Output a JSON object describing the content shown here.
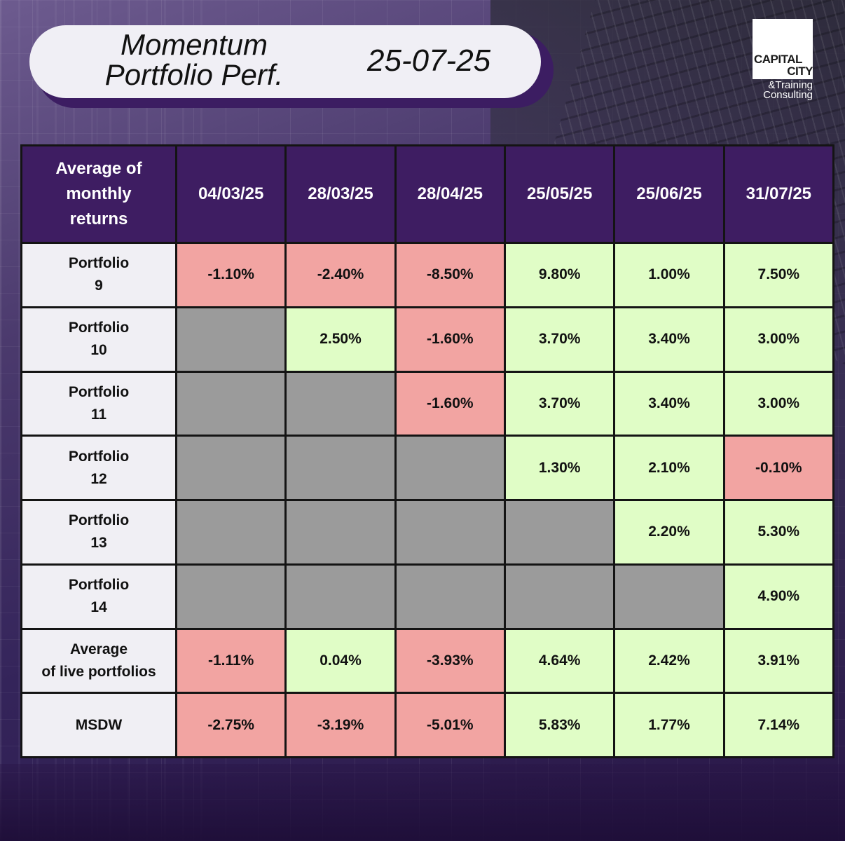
{
  "header": {
    "title_line1": "Momentum",
    "title_line2": "Portfolio Perf.",
    "date": "25-07-25"
  },
  "logo": {
    "line1": "CAPITAL",
    "line2": "CITY",
    "line3": "&Training",
    "line4": "Consulting"
  },
  "chart_data": {
    "type": "table",
    "corner_header": [
      "Average of",
      "monthly",
      "returns"
    ],
    "columns": [
      "04/03/25",
      "28/03/25",
      "28/04/25",
      "25/05/25",
      "25/06/25",
      "31/07/25"
    ],
    "rows": [
      {
        "label": [
          "Portfolio",
          "9"
        ],
        "cells": [
          "-1.10%",
          "-2.40%",
          "-8.50%",
          "9.80%",
          "1.00%",
          "7.50%"
        ]
      },
      {
        "label": [
          "Portfolio",
          "10"
        ],
        "cells": [
          null,
          "2.50%",
          "-1.60%",
          "3.70%",
          "3.40%",
          "3.00%"
        ]
      },
      {
        "label": [
          "Portfolio",
          "11"
        ],
        "cells": [
          null,
          null,
          "-1.60%",
          "3.70%",
          "3.40%",
          "3.00%"
        ]
      },
      {
        "label": [
          "Portfolio",
          "12"
        ],
        "cells": [
          null,
          null,
          null,
          "1.30%",
          "2.10%",
          "-0.10%"
        ]
      },
      {
        "label": [
          "Portfolio",
          "13"
        ],
        "cells": [
          null,
          null,
          null,
          null,
          "2.20%",
          "5.30%"
        ]
      },
      {
        "label": [
          "Portfolio",
          "14"
        ],
        "cells": [
          null,
          null,
          null,
          null,
          null,
          "4.90%"
        ]
      },
      {
        "label": [
          "Average",
          "of live portfolios"
        ],
        "cells": [
          "-1.11%",
          "0.04%",
          "-3.93%",
          "4.64%",
          "2.42%",
          "3.91%"
        ]
      },
      {
        "label": [
          "MSDW"
        ],
        "cells": [
          "-2.75%",
          "-3.19%",
          "-5.01%",
          "5.83%",
          "1.77%",
          "7.14%"
        ]
      }
    ],
    "colors": {
      "header": "#3e1d62",
      "positive": "#e0fdc6",
      "negative": "#f2a4a2",
      "empty": "#9b9b9b",
      "label": "#f0eff4"
    }
  }
}
